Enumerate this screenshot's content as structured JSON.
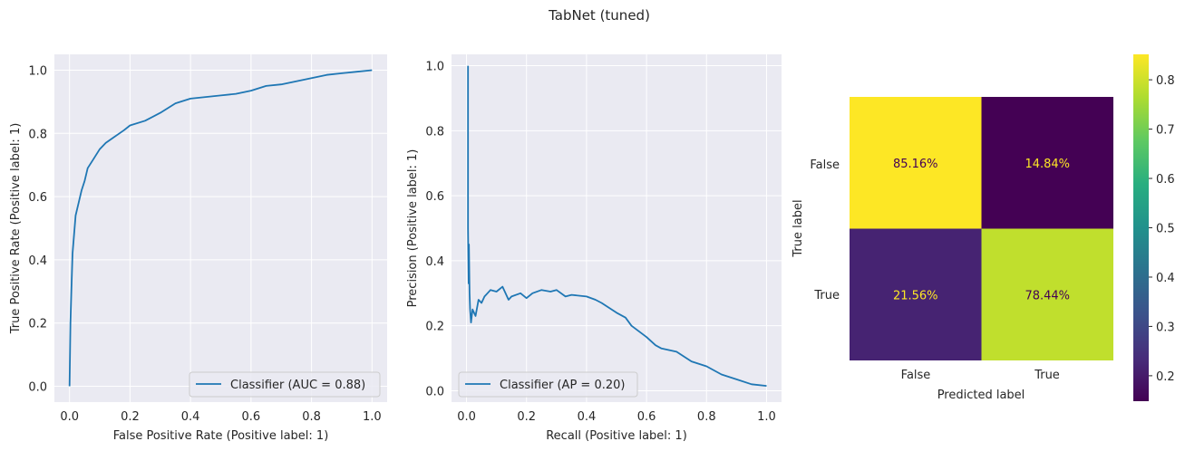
{
  "suptitle": "TabNet (tuned)",
  "colors": {
    "curve": "#1f77b4",
    "axes_bg": "#eaeaf2",
    "grid": "#ffffff",
    "cell_high": "#fde725",
    "cell_low": "#440154",
    "text_light": "#fde725",
    "text_dark": "#440154"
  },
  "chart_data": [
    {
      "type": "line",
      "name": "roc",
      "xlabel": "False Positive Rate (Positive label: 1)",
      "ylabel": "True Positive Rate (Positive label: 1)",
      "xlim": [
        -0.05,
        1.05
      ],
      "ylim": [
        -0.05,
        1.05
      ],
      "xticks": [
        "0.0",
        "0.2",
        "0.4",
        "0.6",
        "0.8",
        "1.0"
      ],
      "yticks": [
        "0.0",
        "0.2",
        "0.4",
        "0.6",
        "0.8",
        "1.0"
      ],
      "legend": "Classifier (AUC = 0.88)",
      "legend_loc": "lower right",
      "x": [
        0,
        0.003,
        0.006,
        0.01,
        0.015,
        0.02,
        0.03,
        0.04,
        0.05,
        0.06,
        0.08,
        0.1,
        0.12,
        0.15,
        0.18,
        0.2,
        0.25,
        0.3,
        0.35,
        0.4,
        0.45,
        0.5,
        0.55,
        0.6,
        0.65,
        0.7,
        0.75,
        0.8,
        0.85,
        0.9,
        0.95,
        1.0
      ],
      "y": [
        0,
        0.2,
        0.3,
        0.42,
        0.48,
        0.54,
        0.58,
        0.62,
        0.65,
        0.69,
        0.72,
        0.75,
        0.77,
        0.79,
        0.81,
        0.825,
        0.84,
        0.865,
        0.895,
        0.91,
        0.915,
        0.92,
        0.925,
        0.935,
        0.95,
        0.955,
        0.965,
        0.975,
        0.985,
        0.99,
        0.995,
        1.0
      ]
    },
    {
      "type": "line",
      "name": "precision-recall",
      "xlabel": "Recall (Positive label: 1)",
      "ylabel": "Precision (Positive label: 1)",
      "xlim": [
        -0.05,
        1.05
      ],
      "ylim": [
        -0.035,
        1.035
      ],
      "xticks": [
        "0.0",
        "0.2",
        "0.4",
        "0.6",
        "0.8",
        "1.0"
      ],
      "yticks": [
        "0.0",
        "0.2",
        "0.4",
        "0.6",
        "0.8",
        "1.0"
      ],
      "legend": "Classifier (AP = 0.20)",
      "legend_loc": "lower left",
      "x": [
        0.005,
        0.005,
        0.007,
        0.008,
        0.01,
        0.012,
        0.015,
        0.02,
        0.03,
        0.04,
        0.05,
        0.06,
        0.07,
        0.08,
        0.1,
        0.12,
        0.14,
        0.15,
        0.18,
        0.2,
        0.22,
        0.25,
        0.28,
        0.3,
        0.33,
        0.35,
        0.4,
        0.43,
        0.45,
        0.5,
        0.53,
        0.55,
        0.6,
        0.63,
        0.65,
        0.7,
        0.75,
        0.8,
        0.85,
        0.9,
        0.95,
        1.0
      ],
      "y": [
        1.0,
        0.5,
        0.33,
        0.45,
        0.3,
        0.25,
        0.21,
        0.25,
        0.23,
        0.28,
        0.27,
        0.29,
        0.3,
        0.31,
        0.305,
        0.32,
        0.28,
        0.29,
        0.3,
        0.285,
        0.3,
        0.31,
        0.305,
        0.31,
        0.29,
        0.295,
        0.29,
        0.28,
        0.27,
        0.24,
        0.225,
        0.2,
        0.165,
        0.14,
        0.13,
        0.12,
        0.09,
        0.075,
        0.05,
        0.035,
        0.02,
        0.015
      ]
    },
    {
      "type": "heatmap",
      "name": "confusion-matrix",
      "xlabel": "Predicted label",
      "ylabel": "True label",
      "row_labels": [
        "False",
        "True"
      ],
      "col_labels": [
        "False",
        "True"
      ],
      "values": [
        [
          0.8516,
          0.1484
        ],
        [
          0.2156,
          0.7844
        ]
      ],
      "cell_text": [
        [
          "85.16%",
          "14.84%"
        ],
        [
          "21.56%",
          "78.44%"
        ]
      ],
      "colorbar_range": [
        0.1484,
        0.8516
      ],
      "colorbar_ticks": [
        "0.2",
        "0.3",
        "0.4",
        "0.5",
        "0.6",
        "0.7",
        "0.8"
      ],
      "colorbar_tick_values": [
        0.2,
        0.3,
        0.4,
        0.5,
        0.6,
        0.7,
        0.8
      ]
    }
  ]
}
